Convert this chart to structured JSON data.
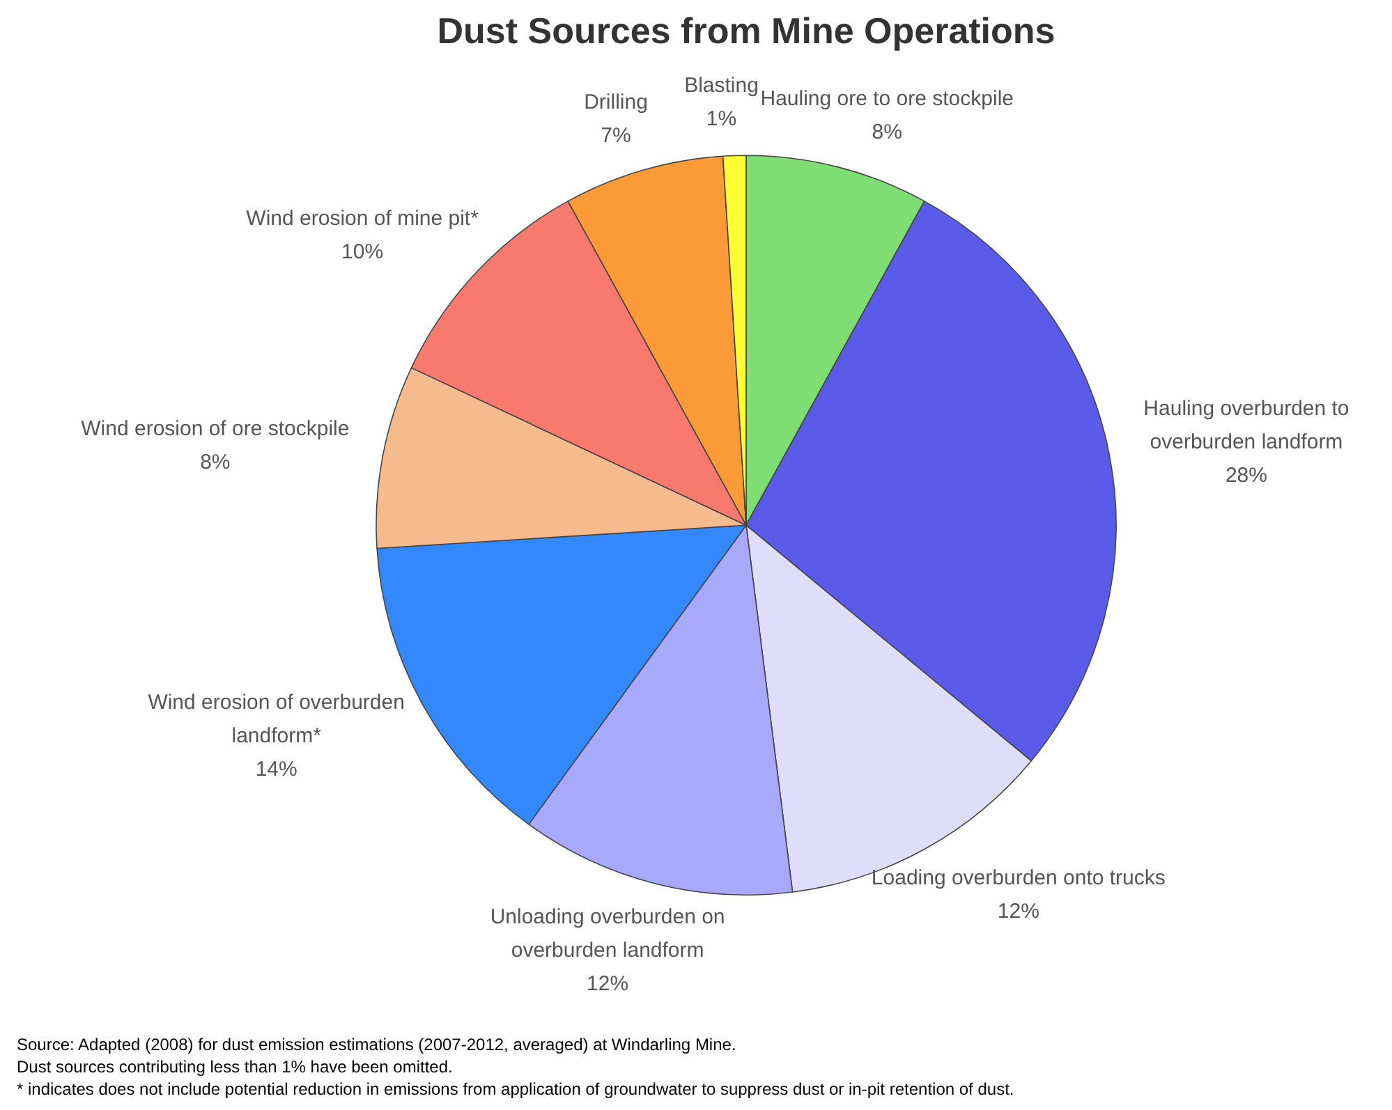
{
  "chart_data": {
    "type": "pie",
    "title": "Dust Sources from Mine Operations",
    "categories": [
      "Hauling ore to ore stockpile",
      "Hauling overburden to overburden landform",
      "Loading overburden onto trucks",
      "Unloading overburden on overburden landform",
      "Wind erosion of overburden landform*",
      "Wind erosion of ore stockpile",
      "Wind erosion of mine pit*",
      "Drilling",
      "Blasting"
    ],
    "values": [
      8,
      28,
      12,
      12,
      14,
      8,
      10,
      7,
      1
    ],
    "value_labels": [
      "8%",
      "28%",
      "12%",
      "12%",
      "14%",
      "8%",
      "10%",
      "7%",
      "1%"
    ],
    "colors": [
      "#7ede73",
      "#5b5be9",
      "#dedefa",
      "#a9a9fc",
      "#3388fd",
      "#f6bb8d",
      "#f87a6f",
      "#fc9a37",
      "#ffff33"
    ],
    "legend": false,
    "annotations": [
      "Source: Adapted (2008) for dust emission estimations (2007-2012, averaged) at Windarling Mine.",
      "Dust sources contributing less than 1% have been omitted.",
      "* indicates does not include potential reduction in emissions from application of groundwater to suppress dust or in-pit retention of dust."
    ]
  }
}
